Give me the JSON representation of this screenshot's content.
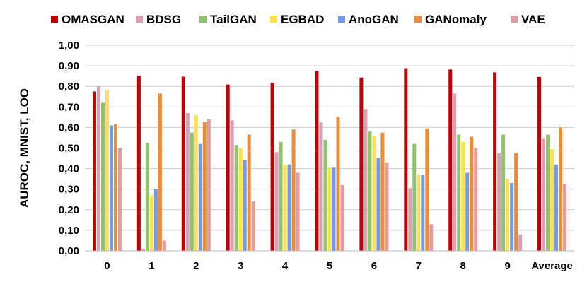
{
  "chart_data": {
    "type": "bar",
    "xlabel": "",
    "ylabel": "AUROC, MNIST, LOO",
    "ylim": [
      0,
      1
    ],
    "y_ticks": [
      "0,00",
      "0,10",
      "0,20",
      "0,30",
      "0,40",
      "0,50",
      "0,60",
      "0,70",
      "0,80",
      "0,90",
      "1,00"
    ],
    "grid": true,
    "legend_position": "top",
    "categories": [
      "0",
      "1",
      "2",
      "3",
      "4",
      "5",
      "6",
      "7",
      "8",
      "9",
      "Average"
    ],
    "series": [
      {
        "name": "OMASGAN",
        "color": "#c00000",
        "values": [
          0.775,
          0.852,
          0.847,
          0.809,
          0.818,
          0.875,
          0.843,
          0.888,
          0.882,
          0.868,
          0.846
        ]
      },
      {
        "name": "BDSG",
        "color": "#d9a0b8",
        "values": [
          0.8,
          0.01,
          0.67,
          0.635,
          0.48,
          0.625,
          0.69,
          0.305,
          0.765,
          0.475,
          0.545
        ]
      },
      {
        "name": "TailGAN",
        "color": "#8fc46a",
        "values": [
          0.72,
          0.525,
          0.575,
          0.515,
          0.53,
          0.54,
          0.58,
          0.52,
          0.565,
          0.565,
          0.565
        ]
      },
      {
        "name": "EGBAD",
        "color": "#ffe14d",
        "values": [
          0.78,
          0.27,
          0.66,
          0.5,
          0.42,
          0.405,
          0.56,
          0.37,
          0.53,
          0.35,
          0.495
        ]
      },
      {
        "name": "AnoGAN",
        "color": "#6f9be8",
        "values": [
          0.61,
          0.3,
          0.52,
          0.44,
          0.42,
          0.405,
          0.45,
          0.37,
          0.38,
          0.33,
          0.42
        ]
      },
      {
        "name": "GANomaly",
        "color": "#ed8b36",
        "values": [
          0.615,
          0.765,
          0.625,
          0.565,
          0.59,
          0.65,
          0.575,
          0.595,
          0.555,
          0.475,
          0.6
        ]
      },
      {
        "name": "VAE",
        "color": "#e79a9f",
        "values": [
          0.5,
          0.05,
          0.64,
          0.24,
          0.38,
          0.32,
          0.43,
          0.13,
          0.5,
          0.08,
          0.325
        ]
      }
    ]
  }
}
